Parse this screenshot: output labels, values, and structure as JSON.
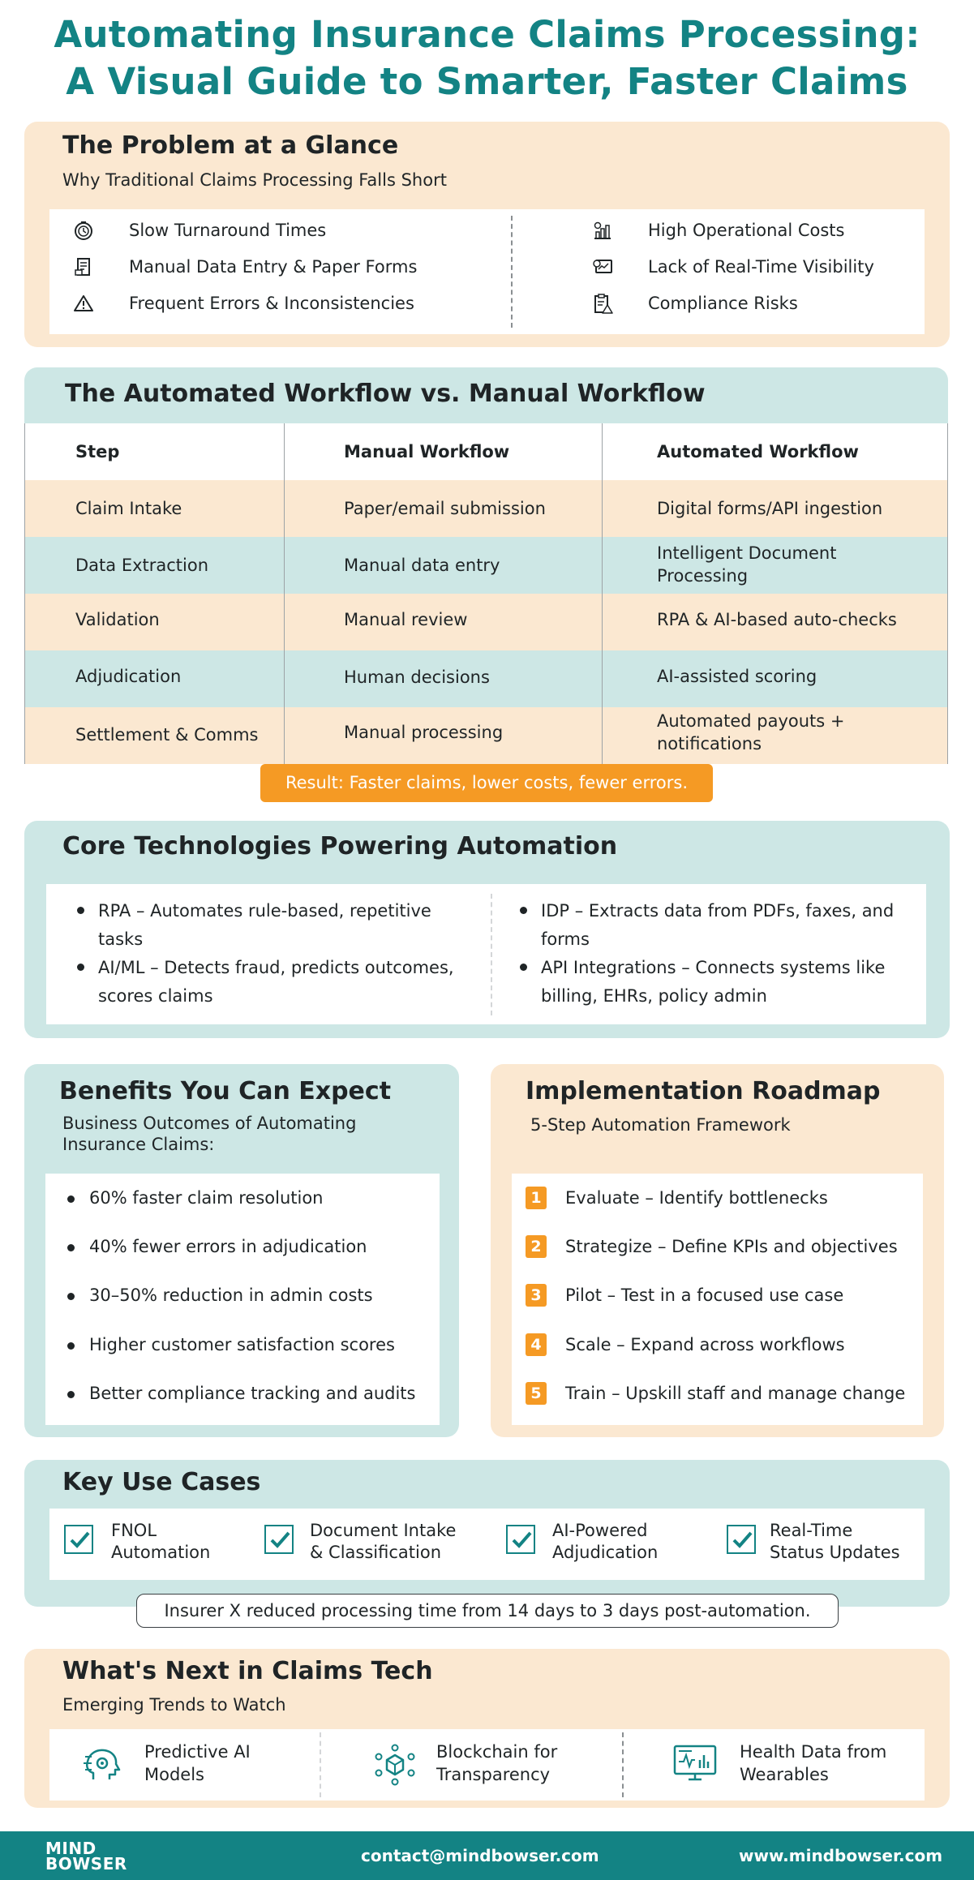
{
  "title": {
    "line1": "Automating Insurance Claims Processing:",
    "line2": "A Visual Guide to Smarter, Faster Claims"
  },
  "problem": {
    "heading": "The Problem at a Glance",
    "subheading": "Why Traditional Claims Processing Falls Short",
    "left_items": [
      {
        "label": "Slow Turnaround Times",
        "icon": "clock-icon"
      },
      {
        "label": "Manual Data Entry & Paper Forms",
        "icon": "paper-form-icon"
      },
      {
        "label": "Frequent Errors & Inconsistencies",
        "icon": "warning-icon"
      }
    ],
    "right_items": [
      {
        "label": "High Operational Costs",
        "icon": "cost-chart-icon"
      },
      {
        "label": "Lack of Real-Time Visibility",
        "icon": "monitor-icon"
      },
      {
        "label": "Compliance Risks",
        "icon": "compliance-clipboard-icon"
      }
    ]
  },
  "workflow": {
    "heading": "The Automated Workflow vs. Manual Workflow",
    "columns": [
      "Step",
      "Manual Workflow",
      "Automated Workflow"
    ],
    "rows": [
      {
        "step": "Claim Intake",
        "manual": "Paper/email submission",
        "automated": "Digital forms/API ingestion"
      },
      {
        "step": "Data Extraction",
        "manual": "Manual data entry",
        "automated": "Intelligent Document Processing"
      },
      {
        "step": "Validation",
        "manual": "Manual review",
        "automated": "RPA & AI-based auto-checks"
      },
      {
        "step": "Adjudication",
        "manual": "Human decisions",
        "automated": "AI-assisted scoring"
      },
      {
        "step": "Settlement & Comms",
        "manual": "Manual processing",
        "automated": "Automated payouts + notifications"
      }
    ],
    "result": "Result: Faster claims, lower costs, fewer errors."
  },
  "core_tech": {
    "heading": "Core Technologies Powering Automation",
    "left": [
      "RPA – Automates rule-based, repetitive tasks",
      "AI/ML – Detects fraud, predicts outcomes, scores claims"
    ],
    "right": [
      "IDP – Extracts data from PDFs, faxes, and forms",
      "API Integrations – Connects systems like billing, EHRs, policy admin"
    ]
  },
  "benefits": {
    "heading": "Benefits You Can Expect",
    "subheading": "Business Outcomes of Automating Insurance Claims:",
    "items": [
      "60% faster claim resolution",
      "40% fewer errors in adjudication",
      "30–50% reduction in admin costs",
      "Higher customer satisfaction scores",
      "Better compliance tracking and audits"
    ]
  },
  "roadmap": {
    "heading": "Implementation Roadmap",
    "subheading": "5-Step Automation Framework",
    "steps": [
      {
        "num": "1",
        "label": "Evaluate – Identify bottlenecks"
      },
      {
        "num": "2",
        "label": "Strategize – Define KPIs and objectives"
      },
      {
        "num": "3",
        "label": "Pilot – Test in a focused use case"
      },
      {
        "num": "4",
        "label": "Scale – Expand across workflows"
      },
      {
        "num": "5",
        "label": "Train – Upskill staff and manage change"
      }
    ]
  },
  "use_cases": {
    "heading": "Key Use Cases",
    "items": [
      {
        "line1": "FNOL",
        "line2": "Automation"
      },
      {
        "line1": "Document Intake",
        "line2": "& Classification"
      },
      {
        "line1": "AI-Powered",
        "line2": "Adjudication"
      },
      {
        "line1": "Real-Time",
        "line2": "Status Updates"
      }
    ],
    "case_study": "Insurer X reduced processing time from 14 days to 3 days post-automation."
  },
  "whats_next": {
    "heading": "What's Next in Claims Tech",
    "subheading": "Emerging Trends to Watch",
    "items": [
      {
        "line1": "Predictive AI",
        "line2": "Models",
        "icon": "ai-head-icon"
      },
      {
        "line1": "Blockchain for",
        "line2": "Transparency",
        "icon": "blockchain-icon"
      },
      {
        "line1": "Health Data from",
        "line2": "Wearables",
        "icon": "health-monitor-icon"
      }
    ]
  },
  "footer": {
    "logo_line1": "MIND",
    "logo_line2": "BOWSER",
    "email": "contact@mindbowser.com",
    "website": "www.mindbowser.com"
  },
  "colors": {
    "teal": "#138384",
    "orange": "#f59a24",
    "peach": "#fbe8d1",
    "mint": "#cde7e5"
  }
}
